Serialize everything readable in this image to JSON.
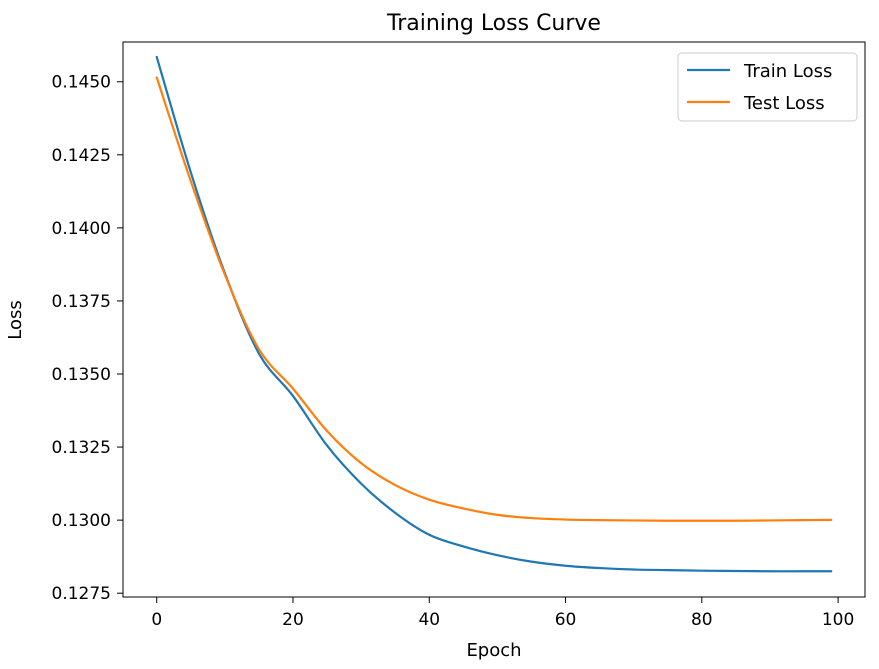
{
  "chart_data": {
    "type": "line",
    "title": "Training Loss Curve",
    "xlabel": "Epoch",
    "ylabel": "Loss",
    "xlim": [
      -4.95,
      103.95
    ],
    "ylim": [
      0.12737,
      0.14636
    ],
    "xticks": [
      0,
      20,
      40,
      60,
      80,
      100
    ],
    "yticks": [
      0.1275,
      0.13,
      0.1325,
      0.135,
      0.1375,
      0.14,
      0.1425,
      0.145
    ],
    "ytick_labels": [
      "0.1275",
      "0.1300",
      "0.1325",
      "0.1350",
      "0.1375",
      "0.1400",
      "0.1425",
      "0.1450"
    ],
    "xtick_labels": [
      "0",
      "20",
      "40",
      "60",
      "80",
      "100"
    ],
    "grid": false,
    "legend_position": "upper right",
    "x": [
      0,
      5,
      10,
      15,
      20,
      25,
      30,
      35,
      40,
      45,
      50,
      55,
      60,
      65,
      70,
      75,
      80,
      85,
      90,
      95,
      99
    ],
    "series": [
      {
        "name": "Train Loss",
        "color": "#1f77b4",
        "values": [
          0.14585,
          0.1419,
          0.13845,
          0.1357,
          0.13425,
          0.13255,
          0.13125,
          0.13025,
          0.1295,
          0.1291,
          0.1288,
          0.12858,
          0.12844,
          0.12836,
          0.12831,
          0.12829,
          0.12827,
          0.12826,
          0.12825,
          0.12825,
          0.12825
        ]
      },
      {
        "name": "Test Loss",
        "color": "#ff7f0e",
        "values": [
          0.14515,
          0.1416,
          0.1384,
          0.13585,
          0.1345,
          0.13305,
          0.13195,
          0.1312,
          0.1307,
          0.1304,
          0.13018,
          0.13007,
          0.13002,
          0.13,
          0.12999,
          0.12998,
          0.12998,
          0.12998,
          0.12999,
          0.13,
          0.13001
        ]
      }
    ]
  }
}
